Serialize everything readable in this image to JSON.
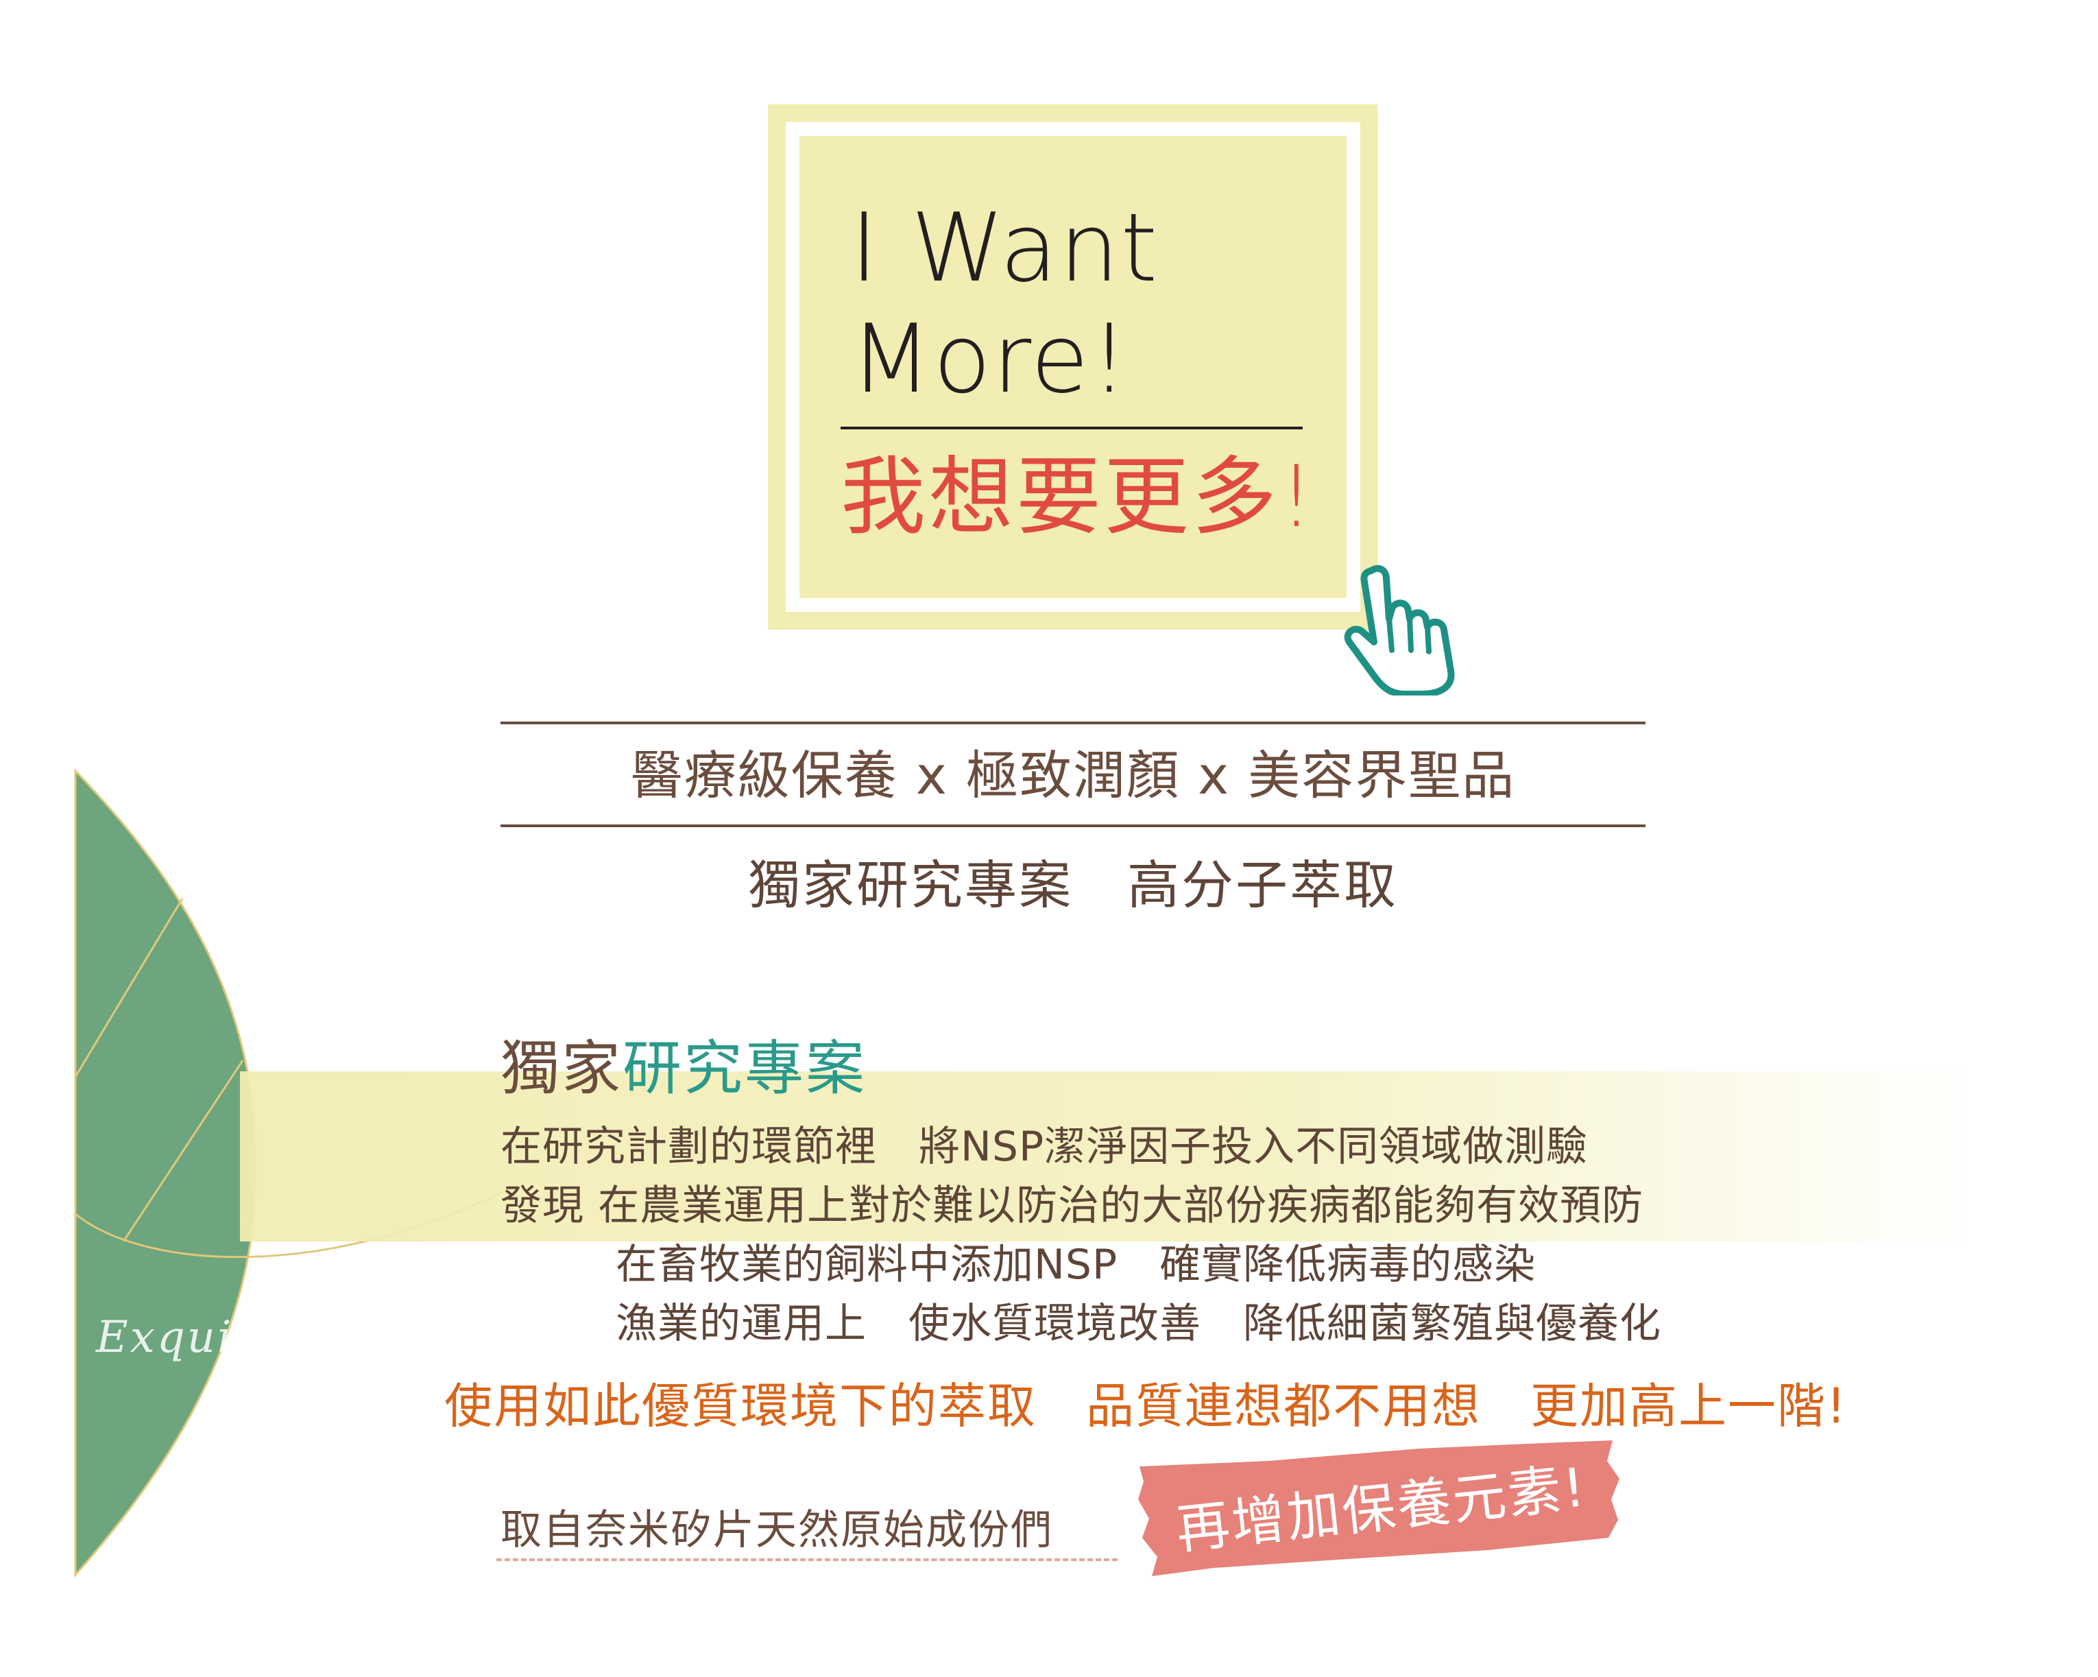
{
  "card": {
    "title_line_1": "I Want",
    "title_line_2": "More!",
    "title_cn": "我想要更多!",
    "bg_color": "#f2edb3",
    "accent_color": "#e04a3f"
  },
  "pointer_icon": "hand-pointer-icon",
  "tagline": "醫療級保養 x 極致潤顏 x 美容界聖品",
  "subtitle": "獨家研究專案　高分子萃取",
  "section": {
    "title_part1": "獨家",
    "title_part2": "研究專案",
    "body_lines": [
      "在研究計劃的環節裡　將NSP潔淨因子投入不同領域做測驗",
      "發現  在農業運用上對於難以防治的大部份疾病都能夠有效預防",
      "在畜牧業的飼料中添加NSP　確實降低病毒的感染",
      "漁業的運用上　使水質環境改善　降低細菌繁殖與優養化"
    ]
  },
  "signature": "Exquisite Story",
  "highlight_statement": "使用如此優質環境下的萃取　品質連想都不用想　更加高上一階!",
  "footnote": "取自奈米矽片天然原始成份們",
  "stamp_text": "再增加保養元素!",
  "colors": {
    "brown": "#6b4d3e",
    "teal": "#2a9a8a",
    "orange": "#d9651a",
    "leaf_green": "#6ca57e",
    "stamp_pink": "#e6827a"
  }
}
